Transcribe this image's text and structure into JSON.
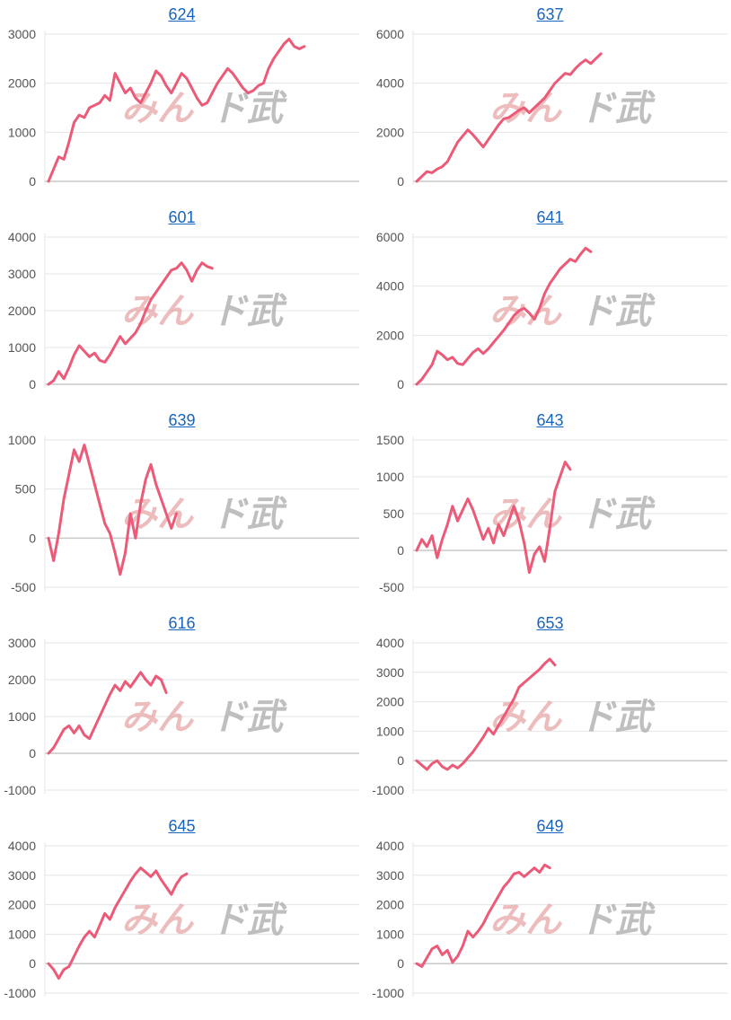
{
  "colors": {
    "line": "#ec5a78",
    "link": "#1565c0"
  },
  "watermark": {
    "part_a": "みん",
    "part_b": "ド",
    "part_c": "武"
  },
  "chart_data": [
    {
      "type": "line",
      "title": "624",
      "yticks": [
        0,
        1000,
        2000,
        3000
      ],
      "ylim": [
        0,
        3000
      ],
      "x": [
        0,
        1,
        2,
        3,
        4,
        5,
        6,
        7,
        8,
        9,
        10,
        11,
        12,
        13,
        14,
        15,
        16,
        17,
        18,
        19,
        20,
        21,
        22,
        23,
        24,
        25,
        26,
        27,
        28,
        29,
        30,
        31,
        32,
        33,
        34,
        35,
        36,
        37,
        38,
        39,
        40,
        41,
        42,
        43,
        44,
        45,
        46,
        47,
        48,
        49,
        50,
        51,
        52,
        53,
        54,
        55,
        56,
        57,
        58,
        59,
        60
      ],
      "values": [
        0,
        250,
        500,
        450,
        800,
        1200,
        1350,
        1300,
        1500,
        1550,
        1600,
        1750,
        1650,
        2200,
        2000,
        1800,
        1900,
        1700,
        1600,
        1800,
        2000,
        2250,
        2150,
        1950,
        1800,
        2000,
        2200,
        2100,
        1900,
        1700,
        1550,
        1600,
        1800,
        2000,
        2150,
        2300,
        2200,
        2050,
        1900,
        1800,
        1850,
        1950,
        2000,
        2300,
        2500,
        2650,
        2800,
        2900,
        2750,
        2700,
        2750,
        null,
        null,
        null,
        null,
        null,
        null,
        null,
        null,
        null,
        null
      ],
      "xmax": 60
    },
    {
      "type": "line",
      "title": "637",
      "yticks": [
        0,
        2000,
        4000,
        6000
      ],
      "ylim": [
        0,
        6000
      ],
      "values": [
        0,
        200,
        400,
        350,
        500,
        600,
        800,
        1200,
        1600,
        1850,
        2100,
        1900,
        1650,
        1400,
        1700,
        2000,
        2300,
        2550,
        2600,
        2750,
        2900,
        3000,
        2800,
        3000,
        3200,
        3400,
        3700,
        4000,
        4200,
        4400,
        4350,
        4600,
        4800,
        4950,
        4800,
        5000,
        5200
      ],
      "xmax": 60
    },
    {
      "type": "line",
      "title": "601",
      "yticks": [
        0,
        1000,
        2000,
        3000,
        4000
      ],
      "ylim": [
        0,
        4000
      ],
      "values": [
        0,
        100,
        350,
        150,
        450,
        800,
        1050,
        900,
        750,
        850,
        650,
        600,
        800,
        1050,
        1300,
        1100,
        1250,
        1400,
        1650,
        2000,
        2300,
        2500,
        2700,
        2900,
        3100,
        3150,
        3300,
        3100,
        2800,
        3100,
        3300,
        3200,
        3150
      ],
      "xmax": 60
    },
    {
      "type": "line",
      "title": "641",
      "yticks": [
        0,
        2000,
        4000,
        6000
      ],
      "ylim": [
        0,
        6000
      ],
      "values": [
        0,
        200,
        500,
        800,
        1350,
        1200,
        1000,
        1100,
        850,
        800,
        1050,
        1300,
        1450,
        1250,
        1450,
        1700,
        1950,
        2200,
        2500,
        2800,
        3000,
        3100,
        2900,
        2650,
        3100,
        3700,
        4100,
        4400,
        4700,
        4900,
        5100,
        5000,
        5300,
        5550,
        5400
      ],
      "xmax": 60
    },
    {
      "type": "line",
      "title": "639",
      "yticks": [
        -500,
        0,
        500,
        1000
      ],
      "ylim": [
        -500,
        1000
      ],
      "values": [
        0,
        -230,
        50,
        400,
        650,
        900,
        780,
        950,
        750,
        550,
        350,
        150,
        50,
        -150,
        -370,
        -150,
        250,
        0,
        350,
        600,
        750,
        550,
        400,
        250,
        100,
        250
      ],
      "xmax": 60
    },
    {
      "type": "line",
      "title": "643",
      "yticks": [
        -500,
        0,
        500,
        1000,
        1500
      ],
      "ylim": [
        -500,
        1500
      ],
      "values": [
        0,
        150,
        50,
        200,
        -100,
        150,
        350,
        600,
        400,
        550,
        700,
        550,
        350,
        150,
        300,
        100,
        350,
        200,
        400,
        600,
        400,
        100,
        -300,
        -50,
        50,
        -150,
        300,
        800,
        1000,
        1200,
        1100
      ],
      "xmax": 60
    },
    {
      "type": "line",
      "title": "616",
      "yticks": [
        -1000,
        0,
        1000,
        2000,
        3000
      ],
      "ylim": [
        -1000,
        3000
      ],
      "values": [
        0,
        150,
        400,
        650,
        750,
        550,
        750,
        500,
        400,
        700,
        1000,
        1300,
        1600,
        1850,
        1700,
        1950,
        1800,
        2000,
        2200,
        2000,
        1850,
        2100,
        2000,
        1650
      ],
      "xmax": 60
    },
    {
      "type": "line",
      "title": "653",
      "yticks": [
        -1000,
        0,
        1000,
        2000,
        3000,
        4000
      ],
      "ylim": [
        -1000,
        4000
      ],
      "values": [
        0,
        -150,
        -300,
        -100,
        0,
        -200,
        -300,
        -150,
        -250,
        -100,
        100,
        300,
        550,
        800,
        1100,
        900,
        1200,
        1500,
        1800,
        2100,
        2500,
        2650,
        2800,
        2950,
        3100,
        3300,
        3450,
        3250
      ],
      "xmax": 60
    },
    {
      "type": "line",
      "title": "645",
      "yticks": [
        -1000,
        0,
        1000,
        2000,
        3000,
        4000
      ],
      "ylim": [
        -1000,
        4000
      ],
      "values": [
        0,
        -200,
        -500,
        -200,
        -100,
        250,
        600,
        900,
        1100,
        900,
        1300,
        1700,
        1500,
        1900,
        2200,
        2500,
        2800,
        3050,
        3250,
        3100,
        2950,
        3150,
        2850,
        2600,
        2350,
        2700,
        2950,
        3050
      ],
      "xmax": 60
    },
    {
      "type": "line",
      "title": "649",
      "yticks": [
        -1000,
        0,
        1000,
        2000,
        3000,
        4000
      ],
      "ylim": [
        -1000,
        4000
      ],
      "values": [
        0,
        -100,
        200,
        500,
        600,
        300,
        450,
        50,
        250,
        600,
        1100,
        900,
        1100,
        1350,
        1700,
        2000,
        2300,
        2600,
        2800,
        3050,
        3100,
        2950,
        3100,
        3250,
        3100,
        3350,
        3250
      ],
      "xmax": 60
    }
  ]
}
